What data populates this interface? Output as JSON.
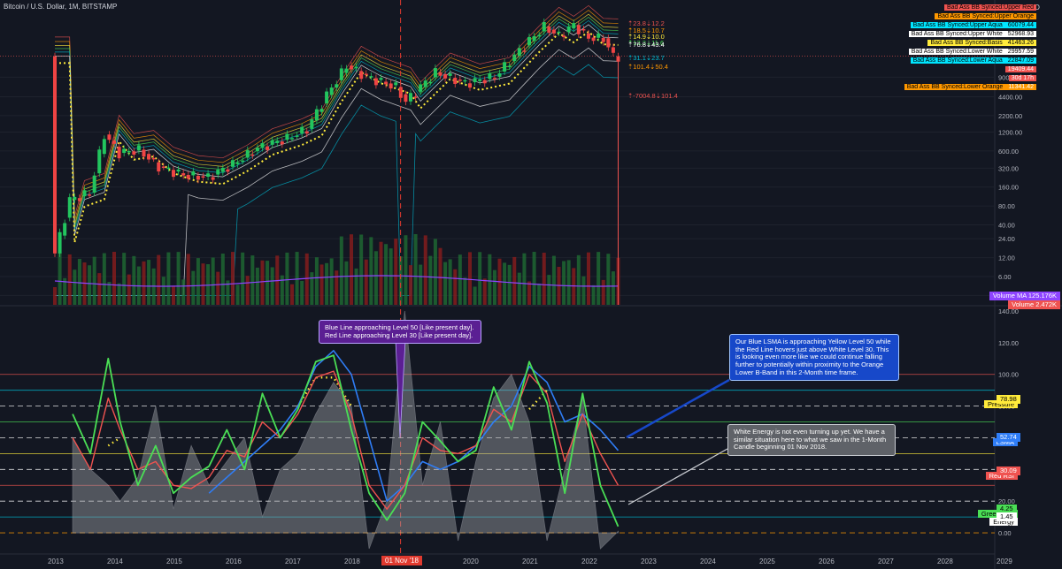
{
  "header": {
    "symbol": "Bitcoin / U.S. Dollar, 1M, BITSTAMP",
    "currency": "USD"
  },
  "colors": {
    "bg": "#131722",
    "up": "#22c55e",
    "down": "#ef4444",
    "yellow": "#ffeb3b",
    "aqua": "#00bcd4",
    "orange": "#ff9800",
    "blue": "#2f7df6",
    "red": "#ef5350",
    "green": "#4ade55",
    "purple": "#8e44ff",
    "energy": "#9ea0a6"
  },
  "legend": [
    {
      "label": "Bad Ass BB Synced:Upper Red",
      "value": "",
      "color": "#ef5350"
    },
    {
      "label": "Bad Ass BB Synced:Upper Orange",
      "value": "",
      "color": "#ff9800"
    },
    {
      "label": "Bad Ass BB Synced:Upper Aqua",
      "value": "60079.44",
      "color": "#00e5ff"
    },
    {
      "label": "Bad Ass BB Synced:Upper White",
      "value": "52968.93",
      "color": "#ffffff"
    },
    {
      "label": "Bad Ass BB Synced:Basis",
      "value": "41463.26",
      "color": "#ffeb3b"
    },
    {
      "label": "Bad Ass BB Synced:Lower White",
      "value": "29957.59",
      "color": "#ffffff"
    },
    {
      "label": "Bad Ass BB Synced:Lower Aqua",
      "value": "22847.09",
      "color": "#00e5ff"
    },
    {
      "label": "",
      "value": "19409.44",
      "color": "#ef5350"
    },
    {
      "label": "",
      "value": "30d 17h",
      "color": "#ef5350"
    },
    {
      "label": "Bad Ass BB Synced:Lower Orange",
      "value": "11341.42",
      "color": "#ff9800"
    }
  ],
  "price_labels": [
    {
      "text": "⇡23.8⇣12.2",
      "color": "#ef5350"
    },
    {
      "text": "⇡18.5⇣10.7",
      "color": "#ff9800"
    },
    {
      "text": "⇡14.9⇣10.0",
      "color": "#ffeb3b"
    },
    {
      "text": "⇡13.3⇣11.6",
      "color": "#4ade55"
    },
    {
      "text": "⇡76.8⇣43.4",
      "color": "#ffffff"
    },
    {
      "text": "⇡31.1⇣23.7",
      "color": "#00bcd4"
    },
    {
      "text": "⇡101.4⇣50.4",
      "color": "#ff9800"
    },
    {
      "text": "⇡-7004.8⇣101.4",
      "color": "#ef5350"
    }
  ],
  "volume_tags": [
    {
      "label": "Volume MA",
      "value": "125.176K",
      "color": "#8e44ff"
    },
    {
      "label": "Volume",
      "value": "2.472K",
      "color": "#ef5350"
    }
  ],
  "osc_tags": [
    {
      "label": "Pressure",
      "value": "78.98",
      "color": "#ffeb3b"
    },
    {
      "label": "LSMA",
      "value": "52.74",
      "color": "#2f7df6"
    },
    {
      "label": "Red RSI",
      "value": "30.09",
      "color": "#ef5350"
    },
    {
      "label": "Green Line",
      "value": "4.25",
      "color": "#4ade55"
    },
    {
      "label": "Energy",
      "value": "1.45",
      "color": "#ffffff"
    }
  ],
  "annotations": {
    "purple": [
      "Blue Line approaching Level 50 [Like present day].",
      "Red Line approaching Level 30 [Like present day]."
    ],
    "blue": "Our Blue LSMA is approaching Yellow Level 50 while the Red Line hovers just above White Level 30.  This is looking even more like we could continue falling further to potentially within proximity to the Orange Lower B-Band in this 2-Month time frame.",
    "gray": "White Energy is not even turning up yet. We have a similar situation here to what we saw in the 1-Month Candle beginning 01 Nov 2018."
  },
  "date_badge": "01 Nov '18",
  "chart_data": [
    {
      "type": "candlestick",
      "title": "Bitcoin / U.S. Dollar, 1M, BITSTAMP",
      "y_scale": "log",
      "ylabel": "USD",
      "y_ticks": [
        "9000.00",
        "4400.00",
        "2200.00",
        "1200.00",
        "600.00",
        "320.00",
        "160.00",
        "80.00",
        "40.00",
        "24.00",
        "12.00",
        "6.00",
        "3.00"
      ],
      "x_ticks": [
        "2013",
        "2014",
        "2015",
        "2016",
        "2017",
        "2018",
        "2020",
        "2021",
        "2022",
        "2023",
        "2024",
        "2025",
        "2026",
        "2027",
        "2028",
        "2029"
      ],
      "series": [
        {
          "name": "BTC close",
          "x": [
            "2013-01",
            "2013-04",
            "2013-08",
            "2013-11",
            "2014-02",
            "2014-06",
            "2014-10",
            "2015-03",
            "2015-08",
            "2016-01",
            "2016-06",
            "2016-12",
            "2017-04",
            "2017-08",
            "2017-12",
            "2018-04",
            "2018-10",
            "2018-12",
            "2019-06",
            "2019-12",
            "2020-06",
            "2020-12",
            "2021-04",
            "2021-07",
            "2021-10",
            "2022-01",
            "2022-04",
            "2022-06"
          ],
          "values": [
            14,
            100,
            130,
            1100,
            560,
            630,
            340,
            250,
            230,
            370,
            670,
            960,
            1350,
            4700,
            13800,
            9250,
            6300,
            3700,
            10800,
            7200,
            9140,
            29000,
            57700,
            41500,
            61300,
            38500,
            37700,
            19400
          ]
        },
        {
          "name": "Bad Ass BB Synced:Upper Aqua",
          "x": [
            "2022-06"
          ],
          "values": [
            60079.44
          ]
        },
        {
          "name": "Bad Ass BB Synced:Upper White",
          "x": [
            "2022-06"
          ],
          "values": [
            52968.93
          ]
        },
        {
          "name": "Bad Ass BB Synced:Basis",
          "x": [
            "2022-06"
          ],
          "values": [
            41463.26
          ]
        },
        {
          "name": "Bad Ass BB Synced:Lower White",
          "x": [
            "2022-06"
          ],
          "values": [
            29957.59
          ]
        },
        {
          "name": "Bad Ass BB Synced:Lower Aqua",
          "x": [
            "2022-06"
          ],
          "values": [
            22847.09
          ]
        },
        {
          "name": "Bad Ass BB Synced:Lower Orange",
          "x": [
            "2022-06"
          ],
          "values": [
            11341.42
          ]
        }
      ]
    },
    {
      "type": "line",
      "ylim": [
        -10,
        140
      ],
      "y_ticks": [
        140,
        120,
        100,
        80,
        60,
        40,
        20,
        0
      ],
      "levels": [
        {
          "value": 100,
          "color": "#ef5350"
        },
        {
          "value": 90,
          "color": "#00bcd4"
        },
        {
          "value": 80,
          "color": "#ffffff"
        },
        {
          "value": 70,
          "color": "#4ade55"
        },
        {
          "value": 60,
          "color": "#ffffff"
        },
        {
          "value": 50,
          "color": "#ffeb3b"
        },
        {
          "value": 40,
          "color": "#ffffff"
        },
        {
          "value": 30,
          "color": "#ef5350"
        },
        {
          "value": 20,
          "color": "#ffffff"
        },
        {
          "value": 10,
          "color": "#00bcd4"
        },
        {
          "value": 0,
          "color": "#ff9800"
        }
      ],
      "x": [
        2013.3,
        2013.6,
        2013.9,
        2014.1,
        2014.4,
        2014.7,
        2015.0,
        2015.3,
        2015.6,
        2015.9,
        2016.2,
        2016.5,
        2016.8,
        2017.1,
        2017.4,
        2017.7,
        2018.0,
        2018.3,
        2018.6,
        2018.9,
        2019.2,
        2019.5,
        2019.8,
        2020.1,
        2020.4,
        2020.7,
        2021.0,
        2021.3,
        2021.6,
        2021.9,
        2022.2,
        2022.5
      ],
      "series": [
        {
          "name": "Green Line",
          "values": [
            75,
            50,
            110,
            70,
            30,
            55,
            25,
            35,
            42,
            65,
            40,
            88,
            60,
            78,
            108,
            112,
            65,
            25,
            8,
            25,
            70,
            58,
            45,
            52,
            92,
            65,
            108,
            82,
            25,
            88,
            30,
            4
          ]
        },
        {
          "name": "Red RSI",
          "values": [
            60,
            40,
            85,
            65,
            40,
            45,
            30,
            28,
            35,
            52,
            48,
            70,
            60,
            75,
            98,
            102,
            75,
            30,
            15,
            30,
            60,
            52,
            50,
            55,
            78,
            70,
            100,
            88,
            45,
            75,
            50,
            30
          ]
        },
        {
          "name": "LSMA",
          "values": [
            null,
            null,
            null,
            null,
            null,
            null,
            null,
            null,
            25,
            35,
            45,
            55,
            65,
            80,
            105,
            115,
            100,
            60,
            20,
            30,
            45,
            40,
            45,
            55,
            70,
            80,
            105,
            95,
            70,
            75,
            65,
            52
          ]
        },
        {
          "name": "Energy",
          "values": [
            60,
            40,
            30,
            20,
            35,
            80,
            15,
            55,
            30,
            45,
            60,
            10,
            40,
            50,
            75,
            95,
            80,
            -10,
            20,
            140,
            30,
            70,
            -5,
            45,
            85,
            100,
            70,
            -5,
            40,
            85,
            -10,
            1
          ]
        },
        {
          "name": "Pressure",
          "values": [
            null,
            null,
            55,
            60,
            null,
            null,
            null,
            null,
            null,
            null,
            null,
            null,
            null,
            80,
            98,
            98,
            80,
            null,
            null,
            null,
            null,
            null,
            null,
            null,
            null,
            null,
            78,
            90,
            null,
            null,
            null,
            null
          ]
        }
      ]
    }
  ]
}
